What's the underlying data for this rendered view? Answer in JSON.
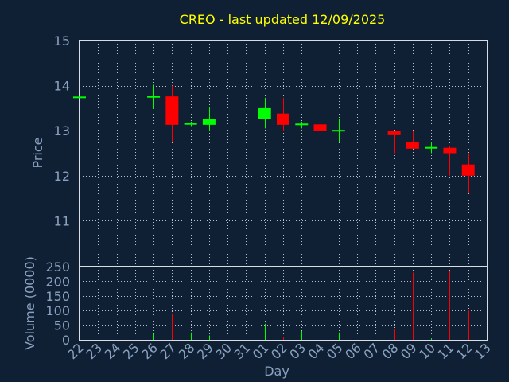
{
  "chart_data": {
    "type": "candlestick",
    "title": "CREO - last updated 12/09/2025",
    "xlabel": "Day",
    "colors": {
      "background": "#0f2034",
      "up": "#00ff00",
      "down": "#ff0000",
      "title": "#ffff00",
      "axis_text": "#8aa2bf",
      "grid": "#d8dde5"
    },
    "price_panel": {
      "ylabel": "Price",
      "ylim": [
        10,
        15
      ],
      "yticks": [
        "11",
        "12",
        "13",
        "14",
        "15"
      ],
      "grid": true
    },
    "volume_panel": {
      "ylabel": "Volume (0000)",
      "ylim": [
        0,
        250
      ],
      "yticks": [
        "0",
        "50",
        "100",
        "150",
        "200",
        "250"
      ],
      "grid": true
    },
    "categories": [
      "22",
      "23",
      "24",
      "25",
      "26",
      "27",
      "28",
      "29",
      "30",
      "31",
      "01",
      "02",
      "03",
      "04",
      "05",
      "06",
      "07",
      "08",
      "09",
      "10",
      "11",
      "12",
      "13"
    ],
    "candles": [
      {
        "day": "22",
        "open": 13.74,
        "close": 13.74,
        "high": 13.74,
        "low": 13.74
      },
      {
        "day": "26",
        "open": 13.75,
        "close": 13.75,
        "high": 14.02,
        "low": 13.48
      },
      {
        "day": "27",
        "open": 13.76,
        "close": 13.13,
        "high": 14.0,
        "low": 12.74
      },
      {
        "day": "28",
        "open": 13.12,
        "close": 13.15,
        "high": 13.2,
        "low": 13.1
      },
      {
        "day": "29",
        "open": 13.13,
        "close": 13.26,
        "high": 13.52,
        "low": 13.0
      },
      {
        "day": "01",
        "open": 13.26,
        "close": 13.5,
        "high": 13.73,
        "low": 13.05
      },
      {
        "day": "02",
        "open": 13.38,
        "close": 13.13,
        "high": 13.73,
        "low": 13.0
      },
      {
        "day": "03",
        "open": 13.12,
        "close": 13.14,
        "high": 13.2,
        "low": 13.05
      },
      {
        "day": "04",
        "open": 13.14,
        "close": 13.0,
        "high": 13.25,
        "low": 12.75
      },
      {
        "day": "05",
        "open": 13.0,
        "close": 13.0,
        "high": 13.25,
        "low": 12.75
      },
      {
        "day": "08",
        "open": 13.0,
        "close": 12.9,
        "high": 13.0,
        "low": 12.5
      },
      {
        "day": "09",
        "open": 12.75,
        "close": 12.6,
        "high": 13.0,
        "low": 12.6
      },
      {
        "day": "10",
        "open": 12.6,
        "close": 12.62,
        "high": 12.75,
        "low": 12.5
      },
      {
        "day": "11",
        "open": 12.62,
        "close": 12.5,
        "high": 12.65,
        "low": 12.0
      },
      {
        "day": "12",
        "open": 12.25,
        "close": 12.0,
        "high": 12.5,
        "low": 11.62
      }
    ],
    "volume": [
      {
        "day": "26",
        "value": 20,
        "dir": "up"
      },
      {
        "day": "27",
        "value": 90,
        "dir": "down"
      },
      {
        "day": "28",
        "value": 25,
        "dir": "up"
      },
      {
        "day": "29",
        "value": 15,
        "dir": "up"
      },
      {
        "day": "01",
        "value": 55,
        "dir": "up"
      },
      {
        "day": "02",
        "value": 10,
        "dir": "down"
      },
      {
        "day": "03",
        "value": 30,
        "dir": "up"
      },
      {
        "day": "04",
        "value": 40,
        "dir": "down"
      },
      {
        "day": "05",
        "value": 25,
        "dir": "up"
      },
      {
        "day": "08",
        "value": 35,
        "dir": "down"
      },
      {
        "day": "09",
        "value": 230,
        "dir": "down"
      },
      {
        "day": "10",
        "value": 5,
        "dir": "up"
      },
      {
        "day": "11",
        "value": 235,
        "dir": "down"
      },
      {
        "day": "12",
        "value": 100,
        "dir": "down"
      }
    ]
  }
}
